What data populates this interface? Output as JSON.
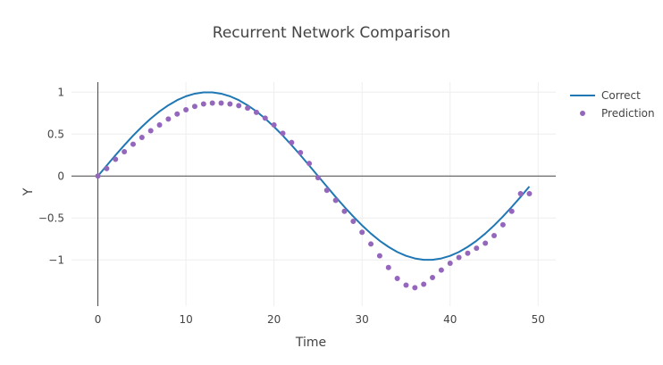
{
  "chart_data": {
    "type": "line",
    "title": "Recurrent Network Comparison",
    "xlabel": "Time",
    "ylabel": "Y",
    "xlim": [
      -3,
      52
    ],
    "ylim": [
      -1.55,
      1.12
    ],
    "x_ticks": [
      0,
      10,
      20,
      30,
      40,
      50
    ],
    "y_ticks": [
      1,
      0.5,
      0,
      -0.5,
      -1
    ],
    "y_tick_labels": [
      "1",
      "0.5",
      "0",
      "−0.5",
      "−1"
    ],
    "grid": true,
    "legend_position": "top-right",
    "series": [
      {
        "name": "Correct",
        "mode": "lines",
        "color": "#1f77b4",
        "x": [
          0,
          1,
          2,
          3,
          4,
          5,
          6,
          7,
          8,
          9,
          10,
          11,
          12,
          13,
          14,
          15,
          16,
          17,
          18,
          19,
          20,
          21,
          22,
          23,
          24,
          25,
          26,
          27,
          28,
          29,
          30,
          31,
          32,
          33,
          34,
          35,
          36,
          37,
          38,
          39,
          40,
          41,
          42,
          43,
          44,
          45,
          46,
          47,
          48,
          49
        ],
        "y": [
          0,
          0.125,
          0.249,
          0.368,
          0.482,
          0.588,
          0.685,
          0.771,
          0.844,
          0.905,
          0.951,
          0.982,
          0.998,
          0.998,
          0.982,
          0.951,
          0.905,
          0.844,
          0.771,
          0.685,
          0.588,
          0.482,
          0.368,
          0.249,
          0.125,
          0,
          -0.125,
          -0.249,
          -0.368,
          -0.482,
          -0.588,
          -0.685,
          -0.771,
          -0.844,
          -0.905,
          -0.951,
          -0.982,
          -0.998,
          -0.998,
          -0.982,
          -0.951,
          -0.905,
          -0.844,
          -0.771,
          -0.685,
          -0.588,
          -0.482,
          -0.368,
          -0.249,
          -0.125
        ]
      },
      {
        "name": "Prediction",
        "mode": "markers",
        "color": "#9467bd",
        "x": [
          0,
          1,
          2,
          3,
          4,
          5,
          6,
          7,
          8,
          9,
          10,
          11,
          12,
          13,
          14,
          15,
          16,
          17,
          18,
          19,
          20,
          21,
          22,
          23,
          24,
          25,
          26,
          27,
          28,
          29,
          30,
          31,
          32,
          33,
          34,
          35,
          36,
          37,
          38,
          39,
          40,
          41,
          42,
          43,
          44,
          45,
          46,
          47,
          48,
          49
        ],
        "y": [
          0,
          0.09,
          0.2,
          0.29,
          0.38,
          0.46,
          0.54,
          0.61,
          0.68,
          0.74,
          0.79,
          0.83,
          0.86,
          0.87,
          0.87,
          0.86,
          0.84,
          0.81,
          0.76,
          0.69,
          0.61,
          0.51,
          0.4,
          0.28,
          0.15,
          -0.02,
          -0.17,
          -0.29,
          -0.42,
          -0.54,
          -0.67,
          -0.81,
          -0.95,
          -1.09,
          -1.22,
          -1.3,
          -1.33,
          -1.29,
          -1.21,
          -1.12,
          -1.04,
          -0.97,
          -0.92,
          -0.86,
          -0.8,
          -0.71,
          -0.58,
          -0.42,
          -0.21,
          -0.21
        ]
      }
    ]
  }
}
